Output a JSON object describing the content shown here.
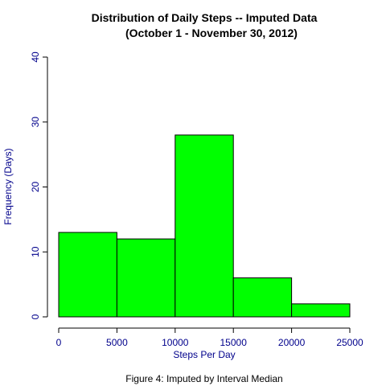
{
  "chart_data": {
    "type": "bar",
    "title_lines": [
      "Distribution of Daily Steps -- Imputed Data",
      "(October 1 - November 30, 2012)"
    ],
    "xlabel": "Steps Per Day",
    "ylabel": "Frequency (Days)",
    "caption": "Figure 4: Imputed by Interval Median",
    "bins": [
      {
        "from": 0,
        "to": 5000,
        "count": 13
      },
      {
        "from": 5000,
        "to": 10000,
        "count": 12
      },
      {
        "from": 10000,
        "to": 15000,
        "count": 28
      },
      {
        "from": 15000,
        "to": 20000,
        "count": 6
      },
      {
        "from": 20000,
        "to": 25000,
        "count": 2
      }
    ],
    "xlim": [
      0,
      25000
    ],
    "ylim": [
      0,
      40
    ],
    "x_ticks": [
      0,
      5000,
      10000,
      15000,
      20000,
      25000
    ],
    "y_ticks": [
      0,
      10,
      20,
      30,
      40
    ],
    "colors": {
      "bar_fill": "#00ff00",
      "bar_stroke": "#000000",
      "axis_text": "#00008b",
      "axis_line": "#000000"
    },
    "grid": false,
    "legend": "none"
  }
}
